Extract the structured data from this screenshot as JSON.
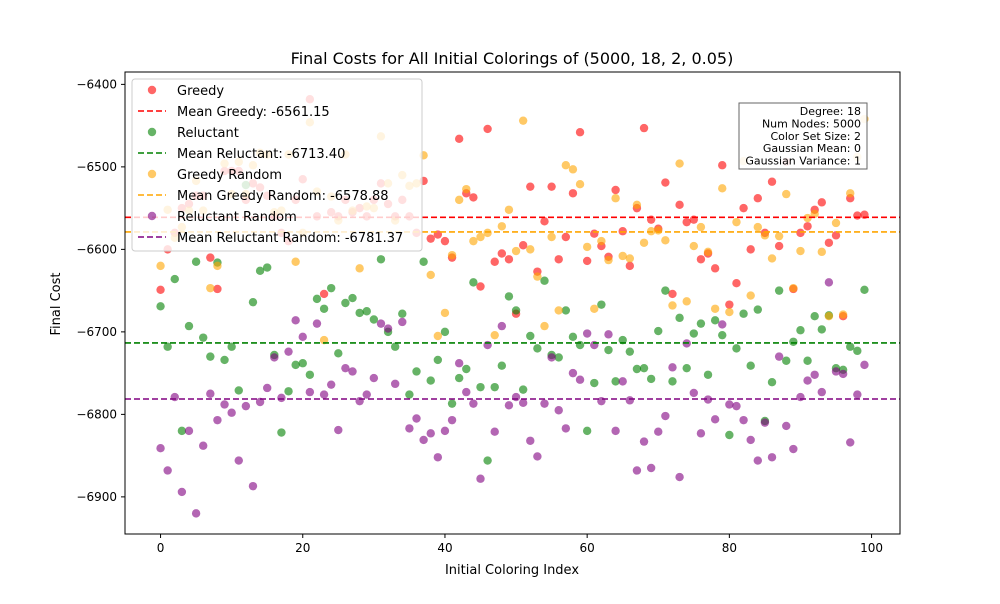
{
  "chart_data": {
    "type": "scatter",
    "title": "Final Costs for All Initial Colorings of (5000, 18, 2, 0.05)",
    "xlabel": "Initial Coloring Index",
    "ylabel": "Final Cost",
    "xlim": [
      -5,
      104
    ],
    "ylim": [
      -6945,
      -6385
    ],
    "x_ticks": [
      0,
      20,
      40,
      60,
      80,
      100
    ],
    "x_tick_labels": [
      "0",
      "20",
      "40",
      "60",
      "80",
      "100"
    ],
    "y_ticks": [
      -6900,
      -6800,
      -6700,
      -6600,
      -6500,
      -6400
    ],
    "y_tick_labels": [
      "−6900",
      "−6800",
      "−6700",
      "−6600",
      "−6500",
      "−6400"
    ],
    "grid": false,
    "legend_position": "upper-left",
    "series": [
      {
        "name": "Greedy",
        "color": "#ff0000",
        "mean": -6561.15,
        "mean_label": "Mean Greedy: -6561.15",
        "mean_color": "#ff0000",
        "x": [
          0,
          1,
          2,
          3,
          4,
          5,
          6,
          7,
          8,
          9,
          10,
          11,
          12,
          13,
          14,
          15,
          16,
          17,
          18,
          19,
          20,
          21,
          22,
          23,
          24,
          25,
          26,
          27,
          28,
          29,
          30,
          31,
          32,
          33,
          34,
          35,
          36,
          37,
          38,
          39,
          40,
          41,
          42,
          43,
          44,
          45,
          46,
          47,
          48,
          49,
          50,
          51,
          52,
          53,
          54,
          55,
          56,
          57,
          58,
          59,
          60,
          61,
          62,
          63,
          64,
          65,
          66,
          67,
          68,
          69,
          70,
          71,
          72,
          73,
          74,
          75,
          76,
          77,
          78,
          79,
          80,
          81,
          82,
          83,
          84,
          85,
          86,
          87,
          88,
          89,
          90,
          91,
          92,
          93,
          94,
          95,
          96,
          97,
          98,
          99
        ],
        "y": [
          -6649,
          -6600,
          -6580,
          -6550,
          -6545,
          -6535,
          -6535,
          -6610,
          -6648,
          -6505,
          -6505,
          -6505,
          -6540,
          -6520,
          -6525,
          -6535,
          -6560,
          -6580,
          -6590,
          -6540,
          -6515,
          -6418,
          -6560,
          -6654,
          -6555,
          -6560,
          -6540,
          -6555,
          -6550,
          -6560,
          -6540,
          -6520,
          -6545,
          -6560,
          -6540,
          -6560,
          -6580,
          -6517,
          -6587,
          -6582,
          -6590,
          -6610,
          -6466,
          -6532,
          -6537,
          -6645,
          -6454,
          -6615,
          -6605,
          -6612,
          -6678,
          -6595,
          -6524,
          -6627,
          -6566,
          -6524,
          -6612,
          -6585,
          -6532,
          -6458,
          -6614,
          -6581,
          -6596,
          -6609,
          -6528,
          -6578,
          -6620,
          -6550,
          -6453,
          -6564,
          -6575,
          -6519,
          -6654,
          -6546,
          -6567,
          -6564,
          -6612,
          -6605,
          -6623,
          -6498,
          -6667,
          -6641,
          -6550,
          -6600,
          -6538,
          -6580,
          -6518,
          -6596,
          -6494,
          -6648,
          -6580,
          -6572,
          -6552,
          -6543,
          -6592,
          -6583,
          -6681,
          -6538,
          -6559,
          -6558
        ]
      },
      {
        "name": "Reluctant",
        "color": "#008000",
        "mean": -6713.4,
        "mean_label": "Mean Reluctant: -6713.40",
        "mean_color": "#008000",
        "x": [
          0,
          1,
          2,
          3,
          4,
          5,
          6,
          7,
          8,
          9,
          10,
          11,
          12,
          13,
          14,
          15,
          16,
          17,
          18,
          19,
          20,
          21,
          22,
          23,
          24,
          25,
          26,
          27,
          28,
          29,
          30,
          31,
          32,
          33,
          34,
          35,
          36,
          37,
          38,
          39,
          40,
          41,
          42,
          43,
          44,
          45,
          46,
          47,
          48,
          49,
          50,
          51,
          52,
          53,
          54,
          55,
          56,
          57,
          58,
          59,
          60,
          61,
          62,
          63,
          64,
          65,
          66,
          67,
          68,
          69,
          70,
          71,
          72,
          73,
          74,
          75,
          76,
          77,
          78,
          79,
          80,
          81,
          82,
          83,
          84,
          85,
          86,
          87,
          88,
          89,
          90,
          91,
          92,
          93,
          94,
          95,
          96,
          97,
          98,
          99
        ],
        "y": [
          -6669,
          -6718,
          -6636,
          -6820,
          -6693,
          -6615,
          -6707,
          -6730,
          -6616,
          -6734,
          -6718,
          -6771,
          -6522,
          -6664,
          -6626,
          -6622,
          -6728,
          -6822,
          -6772,
          -6740,
          -6738,
          -6752,
          -6660,
          -6672,
          -6647,
          -6726,
          -6665,
          -6659,
          -6677,
          -6675,
          -6685,
          -6612,
          -6700,
          -6718,
          -6678,
          -6776,
          -6748,
          -6615,
          -6759,
          -6734,
          -6700,
          -6787,
          -6756,
          -6745,
          -6640,
          -6767,
          -6856,
          -6767,
          -6741,
          -6657,
          -6674,
          -6770,
          -6705,
          -6720,
          -6638,
          -6728,
          -6731,
          -6674,
          -6706,
          -6716,
          -6820,
          -6762,
          -6667,
          -6722,
          -6760,
          -6710,
          -6724,
          -6745,
          -6744,
          -6757,
          -6699,
          -6650,
          -6760,
          -6683,
          -6744,
          -6702,
          -6690,
          -6752,
          -6686,
          -6704,
          -6825,
          -6720,
          -6678,
          -6741,
          -6673,
          -6808,
          -6761,
          -6650,
          -6735,
          -6712,
          -6698,
          -6735,
          -6681,
          -6697,
          -6680,
          -6744,
          -6746,
          -6718,
          -6723,
          -6649
        ]
      },
      {
        "name": "Greedy Random",
        "color": "#ffa500",
        "mean": -6578.88,
        "mean_label": "Mean Greedy Random: -6578.88",
        "mean_color": "#ffa500",
        "x": [
          0,
          1,
          2,
          3,
          4,
          5,
          6,
          7,
          8,
          9,
          10,
          11,
          12,
          13,
          14,
          15,
          16,
          17,
          18,
          19,
          20,
          21,
          22,
          23,
          24,
          25,
          26,
          27,
          28,
          29,
          30,
          31,
          32,
          33,
          34,
          35,
          36,
          37,
          38,
          39,
          40,
          41,
          42,
          43,
          44,
          45,
          46,
          47,
          48,
          49,
          50,
          51,
          52,
          53,
          54,
          55,
          56,
          57,
          58,
          59,
          60,
          61,
          62,
          63,
          64,
          65,
          66,
          67,
          68,
          69,
          70,
          71,
          72,
          73,
          74,
          75,
          76,
          77,
          78,
          79,
          80,
          81,
          82,
          83,
          84,
          85,
          86,
          87,
          88,
          89,
          90,
          91,
          92,
          93,
          94,
          95,
          96,
          97,
          98,
          99
        ],
        "y": [
          -6620,
          -6552,
          -6586,
          -6573,
          -6553,
          -6517,
          -6553,
          -6647,
          -6620,
          -6496,
          -6533,
          -6494,
          -6533,
          -6498,
          -6483,
          -6485,
          -6555,
          -6553,
          -6485,
          -6615,
          -6580,
          -6446,
          -6530,
          -6710,
          -6536,
          -6565,
          -6485,
          -6553,
          -6623,
          -6548,
          -6550,
          -6463,
          -6520,
          -6565,
          -6510,
          -6523,
          -6520,
          -6486,
          -6631,
          -6705,
          -6677,
          -6607,
          -6540,
          -6527,
          -6590,
          -6585,
          -6580,
          -6704,
          -6572,
          -6552,
          -6602,
          -6444,
          -6600,
          -6633,
          -6693,
          -6585,
          -6674,
          -6498,
          -6503,
          -6521,
          -6597,
          -6672,
          -6590,
          -6613,
          -6538,
          -6608,
          -6611,
          -6546,
          -6592,
          -6578,
          -6577,
          -6589,
          -6668,
          -6496,
          -6663,
          -6596,
          -6573,
          -6603,
          -6672,
          -6526,
          -6676,
          -6567,
          -6493,
          -6656,
          -6573,
          -6583,
          -6611,
          -6584,
          -6533,
          -6647,
          -6602,
          -6562,
          -6557,
          -6603,
          -6681,
          -6568,
          -6679,
          -6532,
          -6488,
          -6442
        ]
      },
      {
        "name": "Reluctant Random",
        "color": "#800080",
        "mean": -6781.37,
        "mean_label": "Mean Reluctant Random: -6781.37",
        "mean_color": "#800080",
        "x": [
          0,
          1,
          2,
          3,
          4,
          5,
          6,
          7,
          8,
          9,
          10,
          11,
          12,
          13,
          14,
          15,
          16,
          17,
          18,
          19,
          20,
          21,
          22,
          23,
          24,
          25,
          26,
          27,
          28,
          29,
          30,
          31,
          32,
          33,
          34,
          35,
          36,
          37,
          38,
          39,
          40,
          41,
          42,
          43,
          44,
          45,
          46,
          47,
          48,
          49,
          50,
          51,
          52,
          53,
          54,
          55,
          56,
          57,
          58,
          59,
          60,
          61,
          62,
          63,
          64,
          65,
          66,
          67,
          68,
          69,
          70,
          71,
          72,
          73,
          74,
          75,
          76,
          77,
          78,
          79,
          80,
          81,
          82,
          83,
          84,
          85,
          86,
          87,
          88,
          89,
          90,
          91,
          92,
          93,
          94,
          95,
          96,
          97,
          98,
          99
        ],
        "y": [
          -6841,
          -6868,
          -6779,
          -6894,
          -6820,
          -6920,
          -6838,
          -6775,
          -6807,
          -6788,
          -6798,
          -6856,
          -6790,
          -6887,
          -6785,
          -6768,
          -6731,
          -6780,
          -6724,
          -6686,
          -6706,
          -6773,
          -6690,
          -6776,
          -6764,
          -6819,
          -6744,
          -6748,
          -6784,
          -6776,
          -6756,
          -6690,
          -6696,
          -6763,
          -6688,
          -6817,
          -6805,
          -6831,
          -6823,
          -6852,
          -6820,
          -6807,
          -6738,
          -6773,
          -6787,
          -6878,
          -6716,
          -6821,
          -6693,
          -6789,
          -6779,
          -6786,
          -6832,
          -6851,
          -6787,
          -6731,
          -6795,
          -6817,
          -6750,
          -6758,
          -6702,
          -6716,
          -6784,
          -6703,
          -6820,
          -6760,
          -6783,
          -6868,
          -6833,
          -6865,
          -6821,
          -6802,
          -6743,
          -6876,
          -6714,
          -6774,
          -6823,
          -6782,
          -6806,
          -6691,
          -6788,
          -6790,
          -6807,
          -6831,
          -6856,
          -6810,
          -6852,
          -6730,
          -6814,
          -6842,
          -6779,
          -6759,
          -6752,
          -6773,
          -6640,
          -6748,
          -6751,
          -6834,
          -6776,
          -6740
        ]
      }
    ],
    "info_box": {
      "lines": [
        "Degree: 18",
        "Num Nodes: 5000",
        "Color Set Size: 2",
        "Gaussian Mean: 0",
        "Gaussian Variance: 1"
      ]
    }
  }
}
